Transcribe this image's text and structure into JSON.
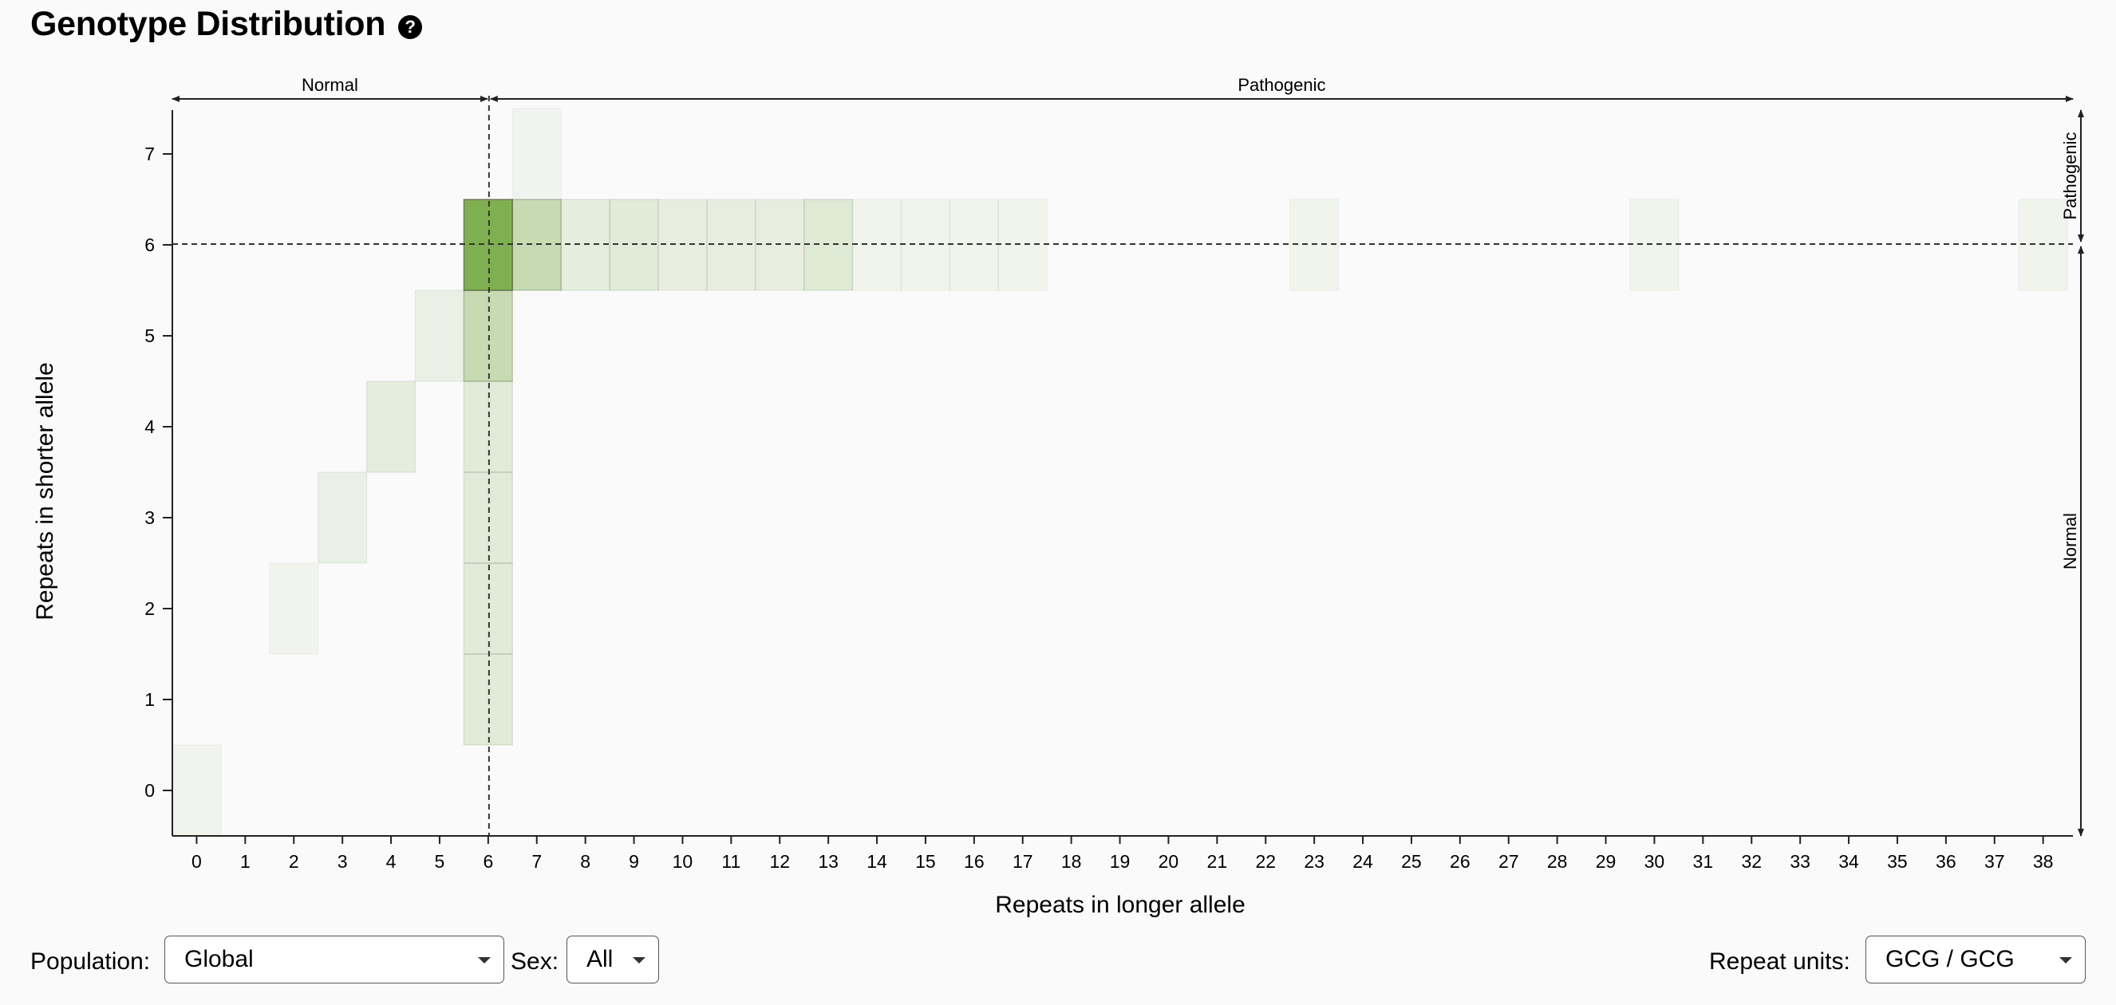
{
  "title": "Genotype Distribution",
  "help_icon": "question-circle-icon",
  "controls": {
    "population_label": "Population:",
    "population_value": "Global",
    "sex_label": "Sex:",
    "sex_value": "All",
    "repeat_units_label": "Repeat units:",
    "repeat_units_value": "GCG / GCG"
  },
  "chart_data": {
    "type": "heatmap",
    "title": "",
    "xlabel": "Repeats in longer allele",
    "ylabel": "Repeats in shorter allele",
    "xlim": [
      0,
      38
    ],
    "ylim": [
      0,
      7
    ],
    "x_ticks": [
      0,
      1,
      2,
      3,
      4,
      5,
      6,
      7,
      8,
      9,
      10,
      11,
      12,
      13,
      14,
      15,
      16,
      17,
      18,
      19,
      20,
      21,
      22,
      23,
      24,
      25,
      26,
      27,
      28,
      29,
      30,
      31,
      32,
      33,
      34,
      35,
      36,
      37,
      38
    ],
    "y_ticks": [
      0,
      1,
      2,
      3,
      4,
      5,
      6,
      7
    ],
    "x_regions": [
      {
        "label": "Normal",
        "from": 0,
        "to": 6
      },
      {
        "label": "Pathogenic",
        "from": 7,
        "to": 38
      }
    ],
    "y_regions": [
      {
        "label": "Pathogenic",
        "from": 7,
        "to": 7
      },
      {
        "label": "Normal",
        "from": 0,
        "to": 6
      }
    ],
    "threshold": {
      "x": 6.5,
      "y": 6.5
    },
    "base_color": "#7fb04f",
    "cells_note": "intensity is relative share of genotypes (0-1), estimated from shading",
    "cells": [
      {
        "x": 0,
        "y": 0,
        "v": 0.07
      },
      {
        "x": 2,
        "y": 2,
        "v": 0.07
      },
      {
        "x": 3,
        "y": 3,
        "v": 0.12
      },
      {
        "x": 4,
        "y": 4,
        "v": 0.17
      },
      {
        "x": 5,
        "y": 5,
        "v": 0.12
      },
      {
        "x": 6,
        "y": 1,
        "v": 0.2
      },
      {
        "x": 6,
        "y": 2,
        "v": 0.2
      },
      {
        "x": 6,
        "y": 3,
        "v": 0.2
      },
      {
        "x": 6,
        "y": 4,
        "v": 0.2
      },
      {
        "x": 6,
        "y": 5,
        "v": 0.42
      },
      {
        "x": 6,
        "y": 6,
        "v": 1.0
      },
      {
        "x": 7,
        "y": 6,
        "v": 0.42
      },
      {
        "x": 7,
        "y": 7,
        "v": 0.07
      },
      {
        "x": 8,
        "y": 6,
        "v": 0.17
      },
      {
        "x": 9,
        "y": 6,
        "v": 0.2
      },
      {
        "x": 10,
        "y": 6,
        "v": 0.15
      },
      {
        "x": 11,
        "y": 6,
        "v": 0.15
      },
      {
        "x": 12,
        "y": 6,
        "v": 0.15
      },
      {
        "x": 13,
        "y": 6,
        "v": 0.22
      },
      {
        "x": 14,
        "y": 6,
        "v": 0.08
      },
      {
        "x": 15,
        "y": 6,
        "v": 0.08
      },
      {
        "x": 16,
        "y": 6,
        "v": 0.08
      },
      {
        "x": 17,
        "y": 6,
        "v": 0.08
      },
      {
        "x": 23,
        "y": 6,
        "v": 0.08
      },
      {
        "x": 30,
        "y": 6,
        "v": 0.08
      },
      {
        "x": 38,
        "y": 6,
        "v": 0.08
      }
    ]
  }
}
